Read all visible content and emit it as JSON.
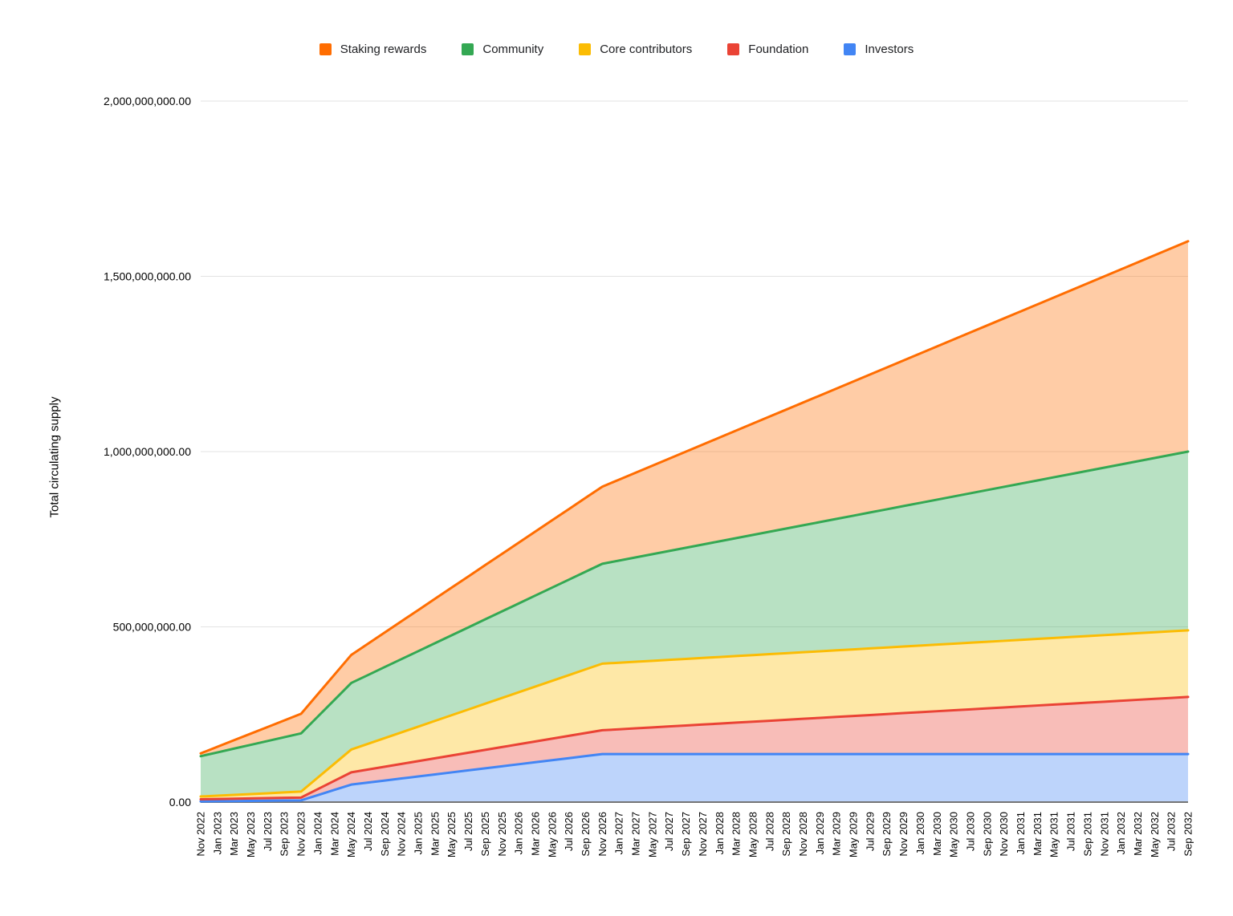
{
  "chart_data": {
    "type": "area",
    "stacked": true,
    "ylabel": "Total circulating supply",
    "legend_position": "top",
    "grid": true,
    "unit_multiplier": 1000000,
    "values_unit": "tokens (millions)",
    "categories": [
      "Nov 2022",
      "Jan 2023",
      "Mar 2023",
      "May 2023",
      "Jul 2023",
      "Sep 2023",
      "Nov 2023",
      "Jan 2024",
      "Mar 2024",
      "May 2024",
      "Jul 2024",
      "Sep 2024",
      "Nov 2024",
      "Jan 2025",
      "Mar 2025",
      "May 2025",
      "Jul 2025",
      "Sep 2025",
      "Nov 2025",
      "Jan 2026",
      "Mar 2026",
      "May 2026",
      "Jul 2026",
      "Sep 2026",
      "Nov 2026",
      "Jan 2027",
      "Mar 2027",
      "May 2027",
      "Jul 2027",
      "Sep 2027",
      "Nov 2027",
      "Jan 2028",
      "Mar 2028",
      "May 2028",
      "Jul 2028",
      "Sep 2028",
      "Nov 2028",
      "Jan 2029",
      "Mar 2029",
      "May 2029",
      "Jul 2029",
      "Sep 2029",
      "Nov 2029",
      "Jan 2030",
      "Mar 2030",
      "May 2030",
      "Jul 2030",
      "Sep 2030",
      "Nov 2030",
      "Jan 2031",
      "Mar 2031",
      "May 2031",
      "Jul 2031",
      "Sep 2031",
      "Nov 2031",
      "Jan 2032",
      "Mar 2032",
      "May 2032",
      "Jul 2032",
      "Sep 2032"
    ],
    "series": [
      {
        "name": "Staking rewards",
        "color": "#FF6D01",
        "values_millions": [
          8,
          16,
          24,
          32,
          40,
          48,
          56,
          64,
          72,
          80,
          89.3,
          98.7,
          108,
          117.3,
          126.7,
          136,
          145.3,
          154.7,
          164,
          173.3,
          182.7,
          192,
          201.3,
          210.7,
          220,
          230.9,
          241.7,
          252.6,
          263.4,
          274.3,
          285.1,
          296,
          306.9,
          317.7,
          328.6,
          339.4,
          350.3,
          361.1,
          372,
          382.9,
          393.7,
          404.6,
          415.4,
          426.3,
          437.1,
          448,
          458.9,
          469.7,
          480.6,
          491.4,
          502.3,
          513.1,
          524,
          534.9,
          545.7,
          556.6,
          567.4,
          578.3,
          589.1,
          600
        ]
      },
      {
        "name": "Community",
        "color": "#34A853",
        "values_millions": [
          115,
          123.5,
          132,
          140.5,
          149,
          157.5,
          166,
          174,
          182,
          190,
          196.3,
          202.7,
          209,
          215.3,
          221.7,
          228,
          234.3,
          240.7,
          247,
          253.3,
          259.7,
          266,
          272.3,
          278.7,
          285,
          291.4,
          297.9,
          304.3,
          310.7,
          317.1,
          323.6,
          330,
          336.4,
          342.9,
          349.3,
          355.7,
          362.1,
          368.6,
          375,
          381.4,
          387.9,
          394.3,
          400.7,
          407.1,
          413.6,
          420,
          426.4,
          432.9,
          439.3,
          445.7,
          452.1,
          458.6,
          465,
          471.4,
          477.9,
          484.3,
          490.7,
          497.1,
          503.6,
          510
        ]
      },
      {
        "name": "Core contributors",
        "color": "#FBBC04",
        "values_millions": [
          8,
          9.5,
          11,
          12.5,
          14,
          15.5,
          17,
          33,
          49,
          65,
          73.3,
          81.7,
          90,
          98.3,
          106.7,
          115,
          123.3,
          131.7,
          140,
          148.3,
          156.7,
          165,
          173.3,
          181.7,
          190,
          190,
          190,
          190,
          190,
          190,
          190,
          190,
          190,
          190,
          190,
          190,
          190,
          190,
          190,
          190,
          190,
          190,
          190,
          190,
          190,
          190,
          190,
          190,
          190,
          190,
          190,
          190,
          190,
          190,
          190,
          190,
          190,
          190,
          190,
          190
        ]
      },
      {
        "name": "Foundation",
        "color": "#EA4335",
        "values_millions": [
          6,
          6.3,
          6.7,
          7,
          7.3,
          7.7,
          8,
          17,
          26,
          35,
          37.2,
          39.4,
          41.6,
          43.8,
          46,
          48.2,
          50.4,
          52.6,
          54.8,
          57,
          59.2,
          61.4,
          63.6,
          65.8,
          68,
          70.7,
          73.4,
          76.1,
          78.9,
          81.6,
          84.3,
          87,
          89.7,
          92.4,
          95.1,
          97.9,
          100.6,
          103.3,
          106,
          108.7,
          111.4,
          114.1,
          116.9,
          119.6,
          122.3,
          125,
          127.7,
          130.4,
          133.1,
          135.9,
          138.6,
          141.3,
          144,
          146.7,
          149.4,
          152.1,
          154.9,
          157.6,
          160.3,
          163
        ]
      },
      {
        "name": "Investors",
        "color": "#4285F4",
        "values_millions": [
          2,
          2.5,
          3,
          3.5,
          4,
          4.5,
          5,
          20,
          35,
          50,
          55.8,
          61.6,
          67.4,
          73.2,
          79,
          84.8,
          90.6,
          96.4,
          102.2,
          108,
          113.8,
          119.6,
          125.4,
          131.2,
          137,
          137,
          137,
          137,
          137,
          137,
          137,
          137,
          137,
          137,
          137,
          137,
          137,
          137,
          137,
          137,
          137,
          137,
          137,
          137,
          137,
          137,
          137,
          137,
          137,
          137,
          137,
          137,
          137,
          137,
          137,
          137,
          137,
          137,
          137,
          137
        ]
      }
    ],
    "stack_order_bottom_to_top": [
      "Investors",
      "Foundation",
      "Core contributors",
      "Community",
      "Staking rewards"
    ],
    "y_axis": {
      "min": 0,
      "max": 2000000000,
      "ticks_millions": [
        0,
        500,
        1000,
        1500,
        2000
      ],
      "tick_labels": [
        "0.00",
        "500,000,000.00",
        "1,000,000,000.00",
        "1,500,000,000.00",
        "2,000,000,000.00"
      ]
    }
  },
  "colors": {
    "background": "#ffffff",
    "gridline": "#e3e3e3",
    "axis_line": "#757575",
    "tick_text": "#000000",
    "fill_opacity": 0.35
  }
}
